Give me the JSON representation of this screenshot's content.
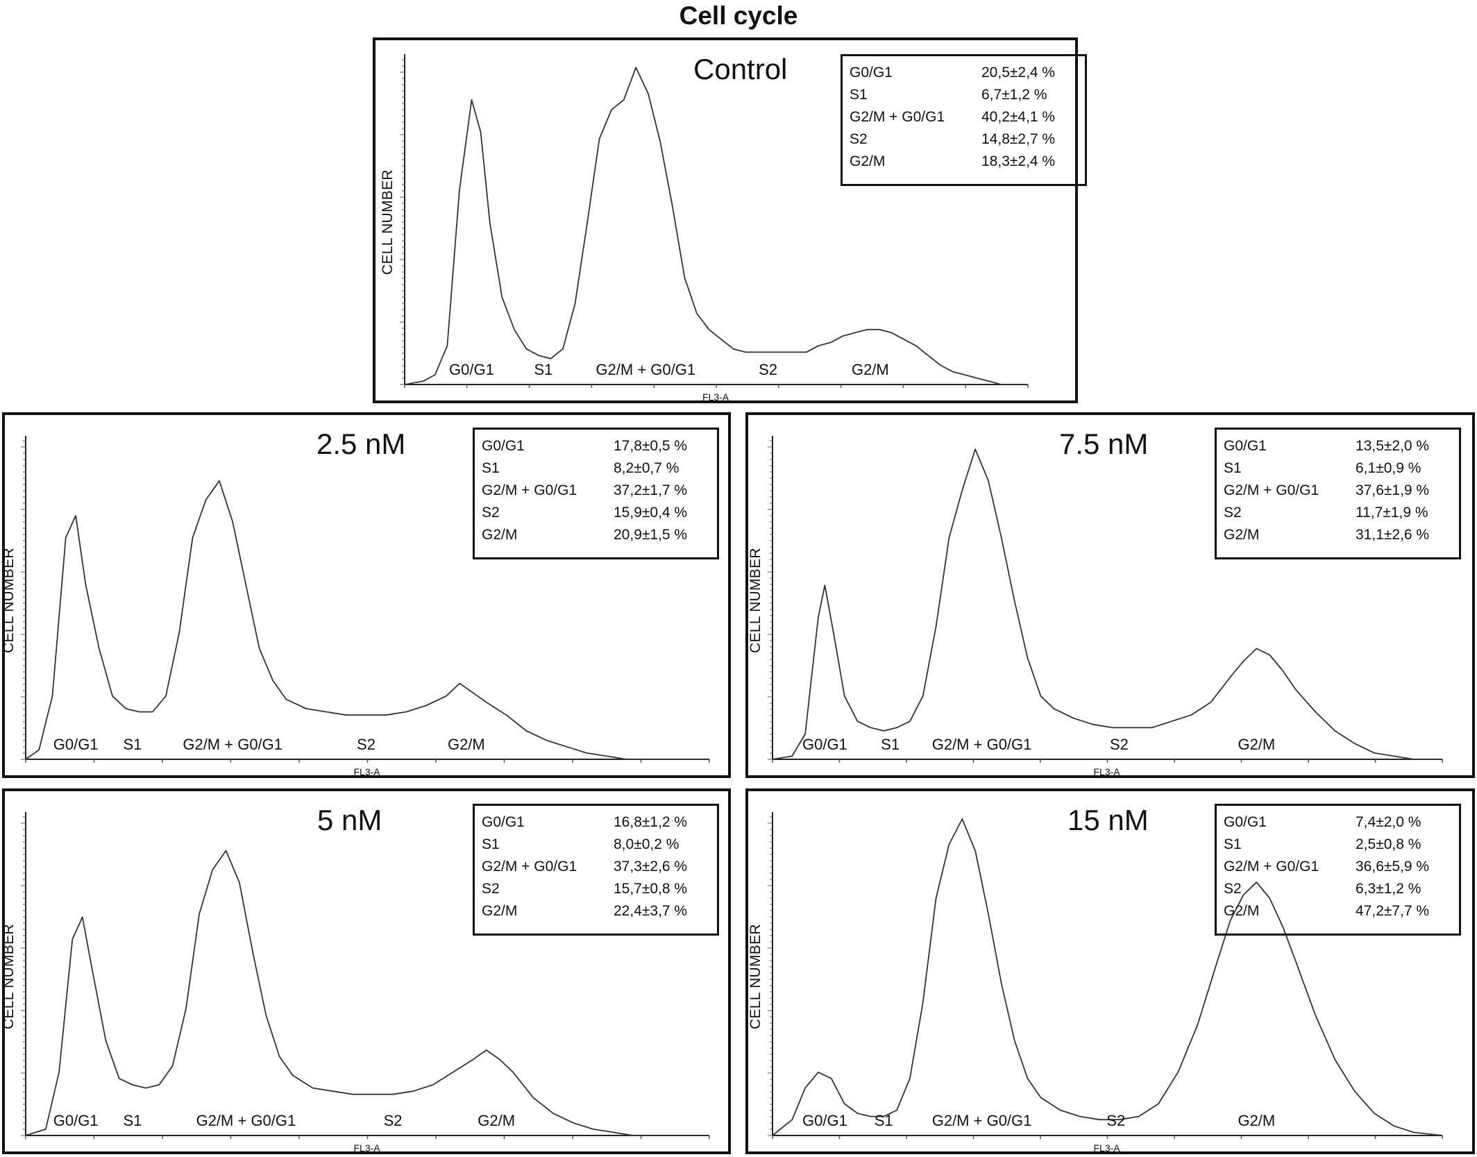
{
  "title": "Cell cycle",
  "chart_data": [
    {
      "type": "line",
      "title": "Control",
      "xlabel": "FL3-A",
      "ylabel": "CELL NUMBER",
      "xlim": [
        0,
        1024
      ],
      "ylim": [
        0,
        100
      ],
      "phase_labels": [
        {
          "text": "G0/G1",
          "x": 110
        },
        {
          "text": "S1",
          "x": 228
        },
        {
          "text": "G2/M + G0/G1",
          "x": 396
        },
        {
          "text": "S2",
          "x": 597
        },
        {
          "text": "G2/M",
          "x": 765
        }
      ],
      "stats": [
        {
          "phase": "G0/G1",
          "value": "20,5±2,4 %"
        },
        {
          "phase": "S1",
          "value": "6,7±1,2 %"
        },
        {
          "phase": "G2/M + G0/G1",
          "value": "40,2±4,1 %"
        },
        {
          "phase": "S2",
          "value": "14,8±2,7 %"
        },
        {
          "phase": "G2/M",
          "value": "18,3±2,4 %"
        }
      ],
      "series": [
        {
          "x": [
            0,
            30,
            50,
            70,
            90,
            110,
            125,
            140,
            160,
            180,
            200,
            220,
            240,
            260,
            280,
            300,
            320,
            340,
            360,
            380,
            400,
            420,
            440,
            460,
            480,
            500,
            520,
            540,
            560,
            580,
            600,
            620,
            640,
            660,
            680,
            700,
            720,
            740,
            760,
            780,
            800,
            820,
            840,
            860,
            880,
            900,
            920,
            940,
            960,
            980,
            1000,
            1024
          ],
          "y": [
            0,
            1,
            3,
            12,
            60,
            88,
            78,
            50,
            27,
            17,
            11,
            9,
            8,
            11,
            25,
            50,
            76,
            85,
            88,
            98,
            90,
            75,
            55,
            33,
            22,
            17,
            14,
            11,
            10,
            10,
            10,
            10,
            10,
            10,
            12,
            13,
            15,
            16,
            17,
            17,
            16,
            14,
            12,
            9,
            6,
            4,
            3,
            2,
            1,
            0,
            0,
            0
          ]
        }
      ]
    },
    {
      "type": "line",
      "title": "2.5 nM",
      "xlabel": "FL3-A",
      "ylabel": "CELL NUMBER",
      "xlim": [
        0,
        1024
      ],
      "ylim": [
        0,
        100
      ],
      "phase_labels": [
        {
          "text": "G0/G1",
          "x": 75
        },
        {
          "text": "S1",
          "x": 160
        },
        {
          "text": "G2/M + G0/G1",
          "x": 310
        },
        {
          "text": "S2",
          "x": 510
        },
        {
          "text": "G2/M",
          "x": 660
        }
      ],
      "stats": [
        {
          "phase": "G0/G1",
          "value": "17,8±0,5 %"
        },
        {
          "phase": "S1",
          "value": "8,2±0,7 %"
        },
        {
          "phase": "G2/M + G0/G1",
          "value": "37,2±1,7 %"
        },
        {
          "phase": "S2",
          "value": "15,9±0,4 %"
        },
        {
          "phase": "G2/M",
          "value": "20,9±1,5 %"
        }
      ],
      "series": [
        {
          "x": [
            0,
            20,
            40,
            60,
            75,
            90,
            110,
            130,
            150,
            170,
            190,
            210,
            230,
            250,
            270,
            290,
            310,
            330,
            350,
            370,
            390,
            420,
            450,
            480,
            510,
            540,
            570,
            600,
            630,
            650,
            670,
            690,
            720,
            750,
            780,
            810,
            840,
            870,
            900,
            950,
            1024
          ],
          "y": [
            0,
            3,
            20,
            70,
            77,
            55,
            35,
            20,
            16,
            15,
            15,
            20,
            40,
            70,
            82,
            88,
            75,
            55,
            35,
            25,
            19,
            16,
            15,
            14,
            14,
            14,
            15,
            17,
            20,
            24,
            21,
            18,
            14,
            9,
            6,
            4,
            2,
            1,
            0,
            0,
            0
          ]
        }
      ]
    },
    {
      "type": "line",
      "title": "7.5 nM",
      "xlabel": "FL3-A",
      "ylabel": "CELL NUMBER",
      "xlim": [
        0,
        1024
      ],
      "ylim": [
        0,
        100
      ],
      "phase_labels": [
        {
          "text": "G0/G1",
          "x": 80
        },
        {
          "text": "S1",
          "x": 180
        },
        {
          "text": "G2/M + G0/G1",
          "x": 320
        },
        {
          "text": "S2",
          "x": 530
        },
        {
          "text": "G2/M",
          "x": 740
        }
      ],
      "stats": [
        {
          "phase": "G0/G1",
          "value": "13,5±2,0 %"
        },
        {
          "phase": "S1",
          "value": "6,1±0,9 %"
        },
        {
          "phase": "G2/M + G0/G1",
          "value": "37,6±1,9 %"
        },
        {
          "phase": "S2",
          "value": "11,7±1,9 %"
        },
        {
          "phase": "G2/M",
          "value": "31,1±2,6 %"
        }
      ],
      "series": [
        {
          "x": [
            0,
            30,
            50,
            70,
            80,
            95,
            110,
            130,
            150,
            170,
            190,
            210,
            230,
            250,
            270,
            290,
            310,
            330,
            350,
            370,
            390,
            410,
            430,
            460,
            490,
            520,
            550,
            580,
            610,
            640,
            670,
            700,
            720,
            740,
            760,
            780,
            800,
            830,
            860,
            890,
            920,
            950,
            980,
            1024
          ],
          "y": [
            0,
            1,
            8,
            45,
            55,
            38,
            20,
            12,
            10,
            9,
            10,
            12,
            20,
            42,
            70,
            85,
            98,
            88,
            70,
            50,
            32,
            20,
            16,
            13,
            11,
            10,
            10,
            10,
            12,
            14,
            18,
            26,
            31,
            35,
            33,
            28,
            22,
            15,
            9,
            5,
            2,
            1,
            0,
            0
          ]
        }
      ]
    },
    {
      "type": "line",
      "title": "5 nM",
      "xlabel": "FL3-A",
      "ylabel": "CELL NUMBER",
      "xlim": [
        0,
        1024
      ],
      "ylim": [
        0,
        100
      ],
      "phase_labels": [
        {
          "text": "G0/G1",
          "x": 75
        },
        {
          "text": "S1",
          "x": 160
        },
        {
          "text": "G2/M + G0/G1",
          "x": 330
        },
        {
          "text": "S2",
          "x": 550
        },
        {
          "text": "G2/M",
          "x": 705
        }
      ],
      "stats": [
        {
          "phase": "G0/G1",
          "value": "16,8±1,2 %"
        },
        {
          "phase": "S1",
          "value": "8,0±0,2 %"
        },
        {
          "phase": "G2/M + G0/G1",
          "value": "37,3±2,6 %"
        },
        {
          "phase": "S2",
          "value": "15,7±0,8 %"
        },
        {
          "phase": "G2/M",
          "value": "22,4±3,7 %"
        }
      ],
      "series": [
        {
          "x": [
            0,
            30,
            50,
            70,
            85,
            100,
            120,
            140,
            160,
            180,
            200,
            220,
            240,
            260,
            280,
            300,
            320,
            340,
            360,
            380,
            400,
            430,
            460,
            490,
            520,
            550,
            580,
            610,
            640,
            670,
            690,
            710,
            730,
            760,
            790,
            820,
            850,
            880,
            910,
            960,
            1024
          ],
          "y": [
            0,
            2,
            20,
            62,
            69,
            52,
            30,
            18,
            16,
            15,
            16,
            22,
            40,
            70,
            84,
            90,
            80,
            58,
            38,
            25,
            19,
            15,
            14,
            13,
            13,
            13,
            14,
            16,
            20,
            24,
            27,
            24,
            20,
            12,
            7,
            4,
            2,
            1,
            0,
            0,
            0
          ]
        }
      ]
    },
    {
      "type": "line",
      "title": "15 nM",
      "xlabel": "FL3-A",
      "ylabel": "CELL NUMBER",
      "xlim": [
        0,
        1024
      ],
      "ylim": [
        0,
        100
      ],
      "phase_labels": [
        {
          "text": "G0/G1",
          "x": 80
        },
        {
          "text": "S1",
          "x": 170
        },
        {
          "text": "G2/M + G0/G1",
          "x": 320
        },
        {
          "text": "S2",
          "x": 525
        },
        {
          "text": "G2/M",
          "x": 740
        }
      ],
      "stats": [
        {
          "phase": "G0/G1",
          "value": "7,4±2,0 %"
        },
        {
          "phase": "S1",
          "value": "2,5±0,8 %"
        },
        {
          "phase": "G2/M + G0/G1",
          "value": "36,6±5,9 %"
        },
        {
          "phase": "S2",
          "value": "6,3±1,2 %"
        },
        {
          "phase": "G2/M",
          "value": "47,2±7,7 %"
        }
      ],
      "series": [
        {
          "x": [
            0,
            30,
            50,
            70,
            90,
            110,
            130,
            150,
            170,
            190,
            210,
            230,
            250,
            270,
            290,
            310,
            330,
            350,
            370,
            390,
            410,
            440,
            470,
            500,
            530,
            560,
            590,
            620,
            650,
            680,
            700,
            720,
            740,
            760,
            780,
            800,
            830,
            860,
            890,
            920,
            950,
            980,
            1024
          ],
          "y": [
            0,
            5,
            15,
            20,
            18,
            10,
            7,
            6,
            6,
            8,
            18,
            42,
            75,
            92,
            100,
            90,
            70,
            48,
            30,
            18,
            12,
            8,
            6,
            5,
            5,
            6,
            10,
            20,
            35,
            55,
            68,
            76,
            80,
            75,
            66,
            55,
            38,
            24,
            14,
            7,
            3,
            1,
            0
          ]
        }
      ]
    }
  ]
}
